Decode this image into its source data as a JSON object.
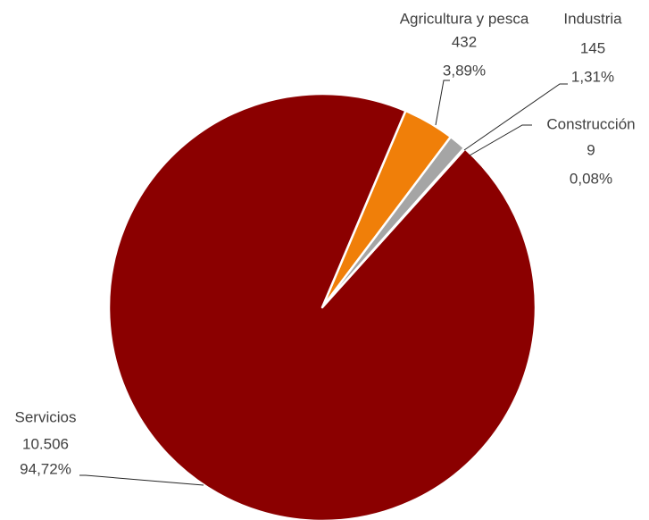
{
  "chart_data": {
    "type": "pie",
    "title": "",
    "slices": [
      {
        "name": "Agricultura y pesca",
        "value": 432,
        "value_label": "432",
        "percent_label": "3,89%",
        "color": "#F07F09"
      },
      {
        "name": "Industria",
        "value": 145,
        "value_label": "145",
        "percent_label": "1,31%",
        "color": "#A5A5A5"
      },
      {
        "name": "Construcción",
        "value": 9,
        "value_label": "9",
        "percent_label": "0,08%",
        "color": "#5B9BD5"
      },
      {
        "name": "Servicios",
        "value": 10506,
        "value_label": "10.506",
        "percent_label": "94,72%",
        "color": "#8B0000"
      }
    ],
    "start_angle_deg": 23,
    "direction": "clockwise",
    "legend": "none"
  }
}
